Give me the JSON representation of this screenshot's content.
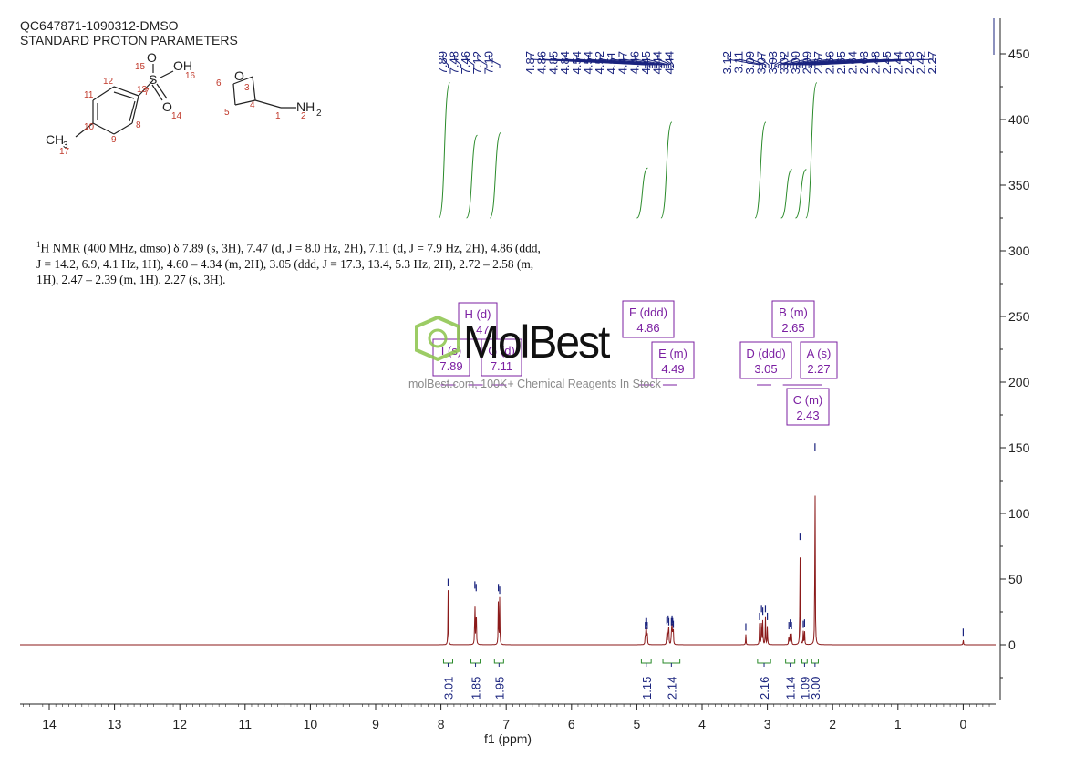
{
  "header": {
    "line1": "QC647871-1090312-DMSO",
    "line2": "STANDARD PROTON PARAMETERS"
  },
  "summary": {
    "nucleus": "1",
    "text": "H NMR (400 MHz, dmso) δ 7.89 (s, 3H), 7.47 (d, J = 8.0 Hz, 2H), 7.11 (d, J = 7.9 Hz, 2H), 4.86 (ddd, J = 14.2, 6.9, 4.1 Hz, 1H), 4.60 – 4.34 (m, 2H), 3.05 (ddd, J = 17.3, 13.4, 5.3 Hz, 2H), 2.72 – 2.58 (m, 1H), 2.47 – 2.39 (m, 1H), 2.27 (s, 3H)."
  },
  "watermark": {
    "brand": "MolBest",
    "tagline": "molBest.com, 100K+ Chemical Reagents In Stock"
  },
  "molecule": {
    "atoms": {
      "O15": "O",
      "S": "S",
      "OH": "OH",
      "O14": "O",
      "O3": "O",
      "NH2": "NH",
      "NH2_sub": "2",
      "CH3": "H",
      "CH3_sub": "3",
      "CH3_C": "C"
    },
    "numbers": [
      "15",
      "16",
      "13",
      "14",
      "12",
      "11",
      "7",
      "10",
      "8",
      "9",
      "17",
      "6",
      "3",
      "5",
      "4",
      "1",
      "2"
    ]
  },
  "colors": {
    "spectrum": "#8b1a1a",
    "integral": "#2a8a2a",
    "peak_label": "#1a237e",
    "multiplet": "#7b1fa2",
    "axis": "#222222",
    "atom_number": "#c0392b"
  },
  "chart_data": {
    "type": "line",
    "title": "",
    "xlabel": "f1 (ppm)",
    "ylabel": "",
    "xlim": [
      14.5,
      -0.5
    ],
    "ylim": [
      -45,
      460
    ],
    "x_ticks": [
      14,
      13,
      12,
      11,
      10,
      9,
      8,
      7,
      6,
      5,
      4,
      3,
      2,
      1,
      0
    ],
    "y_ticks": [
      0,
      50,
      100,
      150,
      200,
      250,
      300,
      350,
      400,
      450
    ],
    "peak_labels_left": [
      "7.89",
      "7.48",
      "7.46",
      "7.12",
      "7.10"
    ],
    "peak_labels_mid": [
      "4.87",
      "4.86",
      "4.85",
      "4.84",
      "4.54",
      "4.54",
      "4.52",
      "4.51",
      "4.47",
      "4.46",
      "4.45",
      "4.44",
      "4.44"
    ],
    "peak_labels_right": [
      "3.12",
      "3.11",
      "3.09",
      "3.07",
      "3.03",
      "3.02",
      "3.00",
      "2.99",
      "2.67",
      "2.66",
      "2.65",
      "2.64",
      "2.63",
      "2.48",
      "2.45",
      "2.44",
      "2.43",
      "2.42",
      "2.27"
    ],
    "series": [
      {
        "name": "",
        "peaks": [
          {
            "ppm": 7.89,
            "height": 42
          },
          {
            "ppm": 7.48,
            "height": 40
          },
          {
            "ppm": 7.46,
            "height": 38
          },
          {
            "ppm": 7.12,
            "height": 38
          },
          {
            "ppm": 7.1,
            "height": 36
          },
          {
            "ppm": 4.87,
            "height": 9
          },
          {
            "ppm": 4.86,
            "height": 12
          },
          {
            "ppm": 4.85,
            "height": 12
          },
          {
            "ppm": 4.84,
            "height": 9
          },
          {
            "ppm": 4.54,
            "height": 13
          },
          {
            "ppm": 4.52,
            "height": 14
          },
          {
            "ppm": 4.51,
            "height": 12
          },
          {
            "ppm": 4.47,
            "height": 12
          },
          {
            "ppm": 4.46,
            "height": 14
          },
          {
            "ppm": 4.45,
            "height": 12
          },
          {
            "ppm": 4.44,
            "height": 10
          },
          {
            "ppm": 3.33,
            "height": 8
          },
          {
            "ppm": 3.12,
            "height": 16
          },
          {
            "ppm": 3.09,
            "height": 22
          },
          {
            "ppm": 3.07,
            "height": 20
          },
          {
            "ppm": 3.03,
            "height": 22
          },
          {
            "ppm": 3.0,
            "height": 16
          },
          {
            "ppm": 2.67,
            "height": 9
          },
          {
            "ppm": 2.65,
            "height": 11
          },
          {
            "ppm": 2.63,
            "height": 9
          },
          {
            "ppm": 2.5,
            "height": 77
          },
          {
            "ppm": 2.45,
            "height": 10
          },
          {
            "ppm": 2.43,
            "height": 11
          },
          {
            "ppm": 2.27,
            "height": 145
          },
          {
            "ppm": 0.0,
            "height": 4
          }
        ]
      }
    ],
    "multiplets": [
      {
        "label": "I (s)",
        "shift": "7.89",
        "ppm": 7.89
      },
      {
        "label": "H (d)",
        "shift": "7.47",
        "ppm": 7.47
      },
      {
        "label": "G (d)",
        "shift": "7.11",
        "ppm": 7.11
      },
      {
        "label": "F (ddd)",
        "shift": "4.86",
        "ppm": 4.86
      },
      {
        "label": "E (m)",
        "shift": "4.49",
        "ppm": 4.49
      },
      {
        "label": "D (ddd)",
        "shift": "3.05",
        "ppm": 3.05
      },
      {
        "label": "B (m)",
        "shift": "2.65",
        "ppm": 2.65
      },
      {
        "label": "A (s)",
        "shift": "2.27",
        "ppm": 2.27
      },
      {
        "label": "C (m)",
        "shift": "2.43",
        "ppm": 2.43
      }
    ],
    "integrals": [
      {
        "from": 7.96,
        "to": 7.82,
        "value": "3.01"
      },
      {
        "from": 7.54,
        "to": 7.4,
        "value": "1.85"
      },
      {
        "from": 7.18,
        "to": 7.04,
        "value": "1.95"
      },
      {
        "from": 4.93,
        "to": 4.78,
        "value": "1.15"
      },
      {
        "from": 4.6,
        "to": 4.34,
        "value": "2.14"
      },
      {
        "from": 3.15,
        "to": 2.95,
        "value": "2.16"
      },
      {
        "from": 2.72,
        "to": 2.58,
        "value": "1.14"
      },
      {
        "from": 2.47,
        "to": 2.39,
        "value": "1.09"
      },
      {
        "from": 2.32,
        "to": 2.22,
        "value": "3.00"
      }
    ]
  }
}
